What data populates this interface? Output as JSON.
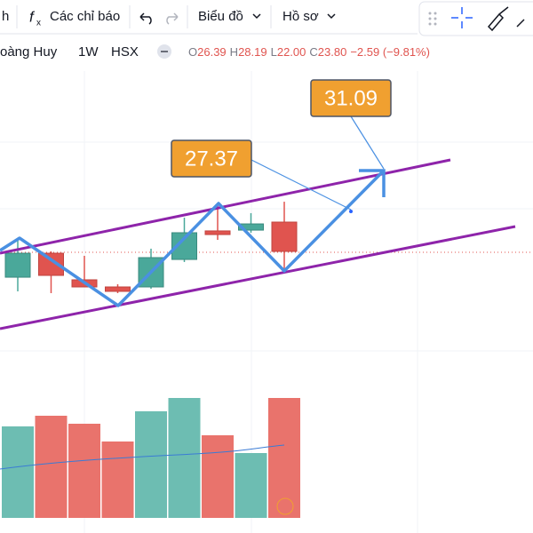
{
  "toolbar": {
    "cut_item": "h",
    "indicators": "Các chỉ báo",
    "chart_type": "Biểu đồ",
    "profile": "Hồ sơ"
  },
  "symbol": {
    "name": "oàng Huy",
    "interval": "1W",
    "exchange": "HSX"
  },
  "ohlc": [
    {
      "label": "O",
      "value": "26.39"
    },
    {
      "label": "H",
      "value": "28.19"
    },
    {
      "label": "L",
      "value": "22.00"
    },
    {
      "label": "C",
      "value": "23.80"
    }
  ],
  "change": "−2.59 (−9.81%)",
  "annotations": [
    "27.37",
    "31.09"
  ],
  "candles": [
    {
      "open": 21.52,
      "close": 23.64,
      "high": 25.0,
      "low": 20.27
    },
    {
      "open": 23.64,
      "close": 21.68,
      "high": 23.8,
      "low": 20.11
    },
    {
      "open": 21.29,
      "close": 20.66,
      "high": 23.41,
      "low": 20.66
    },
    {
      "open": 20.66,
      "close": 20.27,
      "high": 20.9,
      "low": 20.11
    },
    {
      "open": 20.66,
      "close": 23.25,
      "high": 24.04,
      "low": 20.5
    },
    {
      "open": 23.09,
      "close": 25.45,
      "high": 26.78,
      "low": 22.86
    },
    {
      "open": 25.61,
      "close": 25.29,
      "high": 27.96,
      "low": 24.82
    },
    {
      "open": 25.68,
      "close": 26.23,
      "high": 27.18,
      "low": 25.45
    },
    {
      "open": 26.39,
      "close": 23.8,
      "high": 28.19,
      "low": 22.0
    }
  ],
  "volumes": [
    103,
    115,
    106,
    86,
    120,
    135,
    93,
    73,
    135
  ]
}
